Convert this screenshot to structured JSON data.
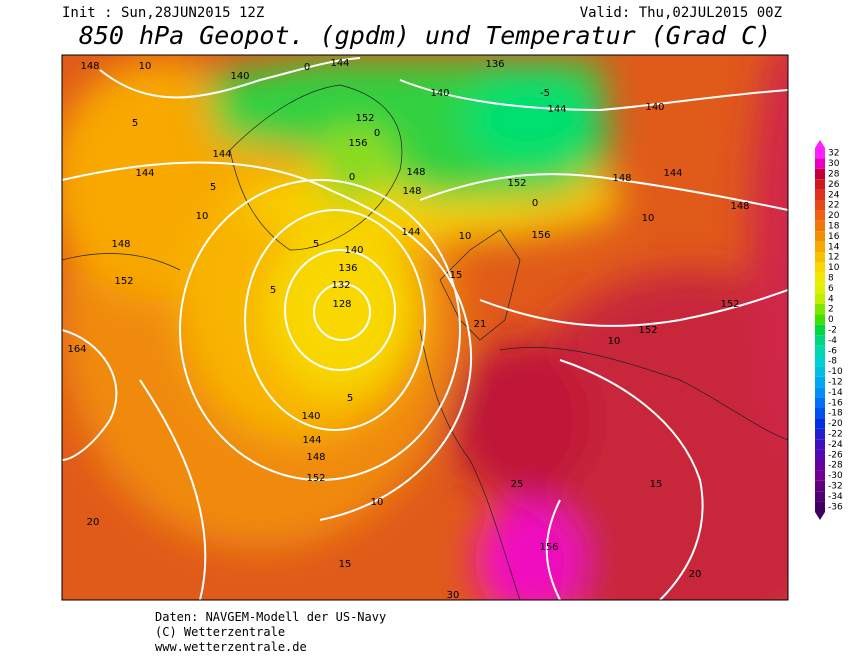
{
  "header": {
    "init": "Init : Sun,28JUN2015 12Z",
    "valid": "Valid: Thu,02JUL2015 00Z",
    "title": "850 hPa Geopot. (gpdm) und Temperatur (Grad C)"
  },
  "contour_labels": [
    "148",
    "10",
    "140",
    "0",
    "144",
    "136",
    "-5",
    "140",
    "144",
    "140",
    "5",
    "152",
    "0",
    "156",
    "144",
    "144",
    "0",
    "148",
    "148",
    "152",
    "148",
    "144",
    "5",
    "0",
    "148",
    "10",
    "10",
    "144",
    "10",
    "156",
    "148",
    "5",
    "140",
    "136",
    "15",
    "152",
    "5",
    "132",
    "128",
    "152",
    "21",
    "152",
    "10",
    "164",
    "5",
    "140",
    "144",
    "148",
    "152",
    "10",
    "25",
    "15",
    "20",
    "156",
    "15",
    "20",
    "30"
  ],
  "colorbar": {
    "levels": [
      32,
      30,
      28,
      26,
      24,
      22,
      20,
      18,
      16,
      14,
      12,
      10,
      8,
      6,
      4,
      2,
      0,
      -2,
      -4,
      -6,
      -8,
      -10,
      -12,
      -14,
      -16,
      -18,
      -20,
      -22,
      -24,
      -26,
      -28,
      -30,
      -32,
      -34,
      -36
    ],
    "colors": [
      "#ff20ff",
      "#e800c0",
      "#c0003c",
      "#d01820",
      "#e03020",
      "#e84818",
      "#f06010",
      "#f07808",
      "#f09000",
      "#f8a800",
      "#f8c000",
      "#f8d800",
      "#f0e800",
      "#e0f000",
      "#c0f000",
      "#80e800",
      "#40e000",
      "#00d840",
      "#00d880",
      "#00d8b0",
      "#00d0d0",
      "#00c0e0",
      "#00a8f0",
      "#0090f8",
      "#0070f8",
      "#0050f0",
      "#0030e0",
      "#2020d0",
      "#4010c0",
      "#5808b0",
      "#6800a0",
      "#700090",
      "#600080",
      "#500070",
      "#400060"
    ]
  },
  "footer": [
    "Daten: NAVGEM-Modell der US-Navy",
    "(C) Wetterzentrale",
    "www.wetterzentrale.de"
  ]
}
